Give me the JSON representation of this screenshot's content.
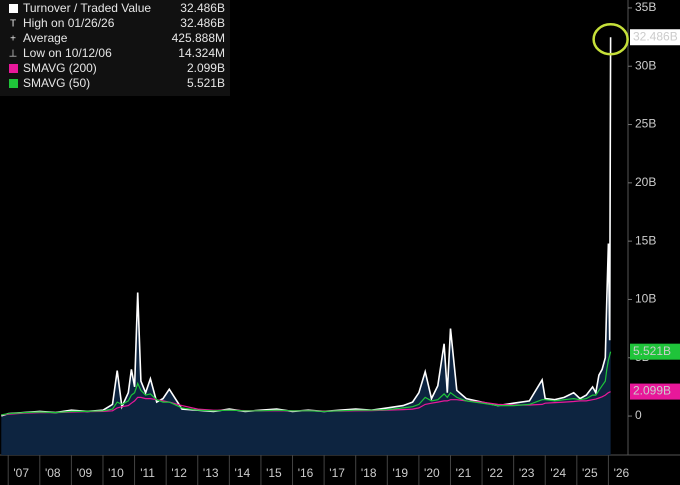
{
  "chart_data": {
    "type": "line",
    "x": [
      2006.78,
      2007.0,
      2007.5,
      2008.0,
      2008.5,
      2009.0,
      2009.5,
      2010.0,
      2010.3,
      2010.45,
      2010.6,
      2010.8,
      2010.9,
      2011.0,
      2011.1,
      2011.2,
      2011.35,
      2011.5,
      2011.7,
      2011.9,
      2012.1,
      2012.5,
      2013.0,
      2013.5,
      2014.0,
      2014.5,
      2015.0,
      2015.5,
      2016.0,
      2016.5,
      2017.0,
      2017.5,
      2018.0,
      2018.5,
      2019.0,
      2019.5,
      2019.8,
      2020.0,
      2020.2,
      2020.4,
      2020.6,
      2020.8,
      2020.9,
      2021.0,
      2021.2,
      2021.5,
      2022.0,
      2022.5,
      2023.0,
      2023.5,
      2023.9,
      2024.0,
      2024.3,
      2024.6,
      2024.9,
      2025.1,
      2025.3,
      2025.5,
      2025.6,
      2025.7,
      2025.8,
      2025.9,
      2025.95,
      2026.0,
      2026.04,
      2026.07
    ],
    "series": [
      {
        "name": "Turnover / Traded Value",
        "color": "#ffffff",
        "area_color": "#0d2440",
        "last_label": "32.486B",
        "values": [
          0.014,
          0.2,
          0.3,
          0.4,
          0.3,
          0.5,
          0.4,
          0.5,
          1.0,
          3.9,
          0.8,
          2.0,
          4.0,
          2.5,
          10.6,
          3.0,
          2.0,
          3.2,
          1.2,
          1.5,
          2.3,
          0.6,
          0.5,
          0.4,
          0.6,
          0.4,
          0.5,
          0.6,
          0.4,
          0.5,
          0.4,
          0.5,
          0.6,
          0.5,
          0.7,
          0.9,
          1.2,
          2.0,
          3.8,
          1.5,
          2.6,
          6.2,
          2.0,
          7.5,
          2.2,
          1.5,
          1.2,
          0.9,
          1.1,
          1.3,
          3.1,
          1.5,
          1.4,
          1.6,
          2.0,
          1.5,
          1.8,
          2.5,
          2.0,
          3.5,
          4.0,
          5.0,
          10.0,
          14.8,
          6.5,
          32.486
        ]
      },
      {
        "name": "SMAVG (200)",
        "color": "#e8189a",
        "last_label": "2.099B",
        "values": [
          0.1,
          0.15,
          0.25,
          0.3,
          0.3,
          0.35,
          0.38,
          0.4,
          0.45,
          0.7,
          0.8,
          0.9,
          1.1,
          1.3,
          1.6,
          1.6,
          1.5,
          1.5,
          1.4,
          1.3,
          1.2,
          0.9,
          0.6,
          0.5,
          0.5,
          0.47,
          0.45,
          0.47,
          0.45,
          0.45,
          0.43,
          0.43,
          0.45,
          0.47,
          0.5,
          0.55,
          0.6,
          0.7,
          1.0,
          1.1,
          1.2,
          1.3,
          1.3,
          1.4,
          1.4,
          1.3,
          1.2,
          1.0,
          0.95,
          0.95,
          1.0,
          1.1,
          1.15,
          1.2,
          1.25,
          1.3,
          1.3,
          1.4,
          1.45,
          1.55,
          1.65,
          1.8,
          1.9,
          2.0,
          2.05,
          2.099
        ]
      },
      {
        "name": "SMAVG (50)",
        "color": "#1fc43a",
        "last_label": "5.521B",
        "values": [
          0.1,
          0.2,
          0.3,
          0.35,
          0.3,
          0.4,
          0.4,
          0.45,
          0.6,
          1.2,
          1.0,
          1.3,
          1.8,
          2.0,
          2.8,
          2.2,
          1.8,
          1.9,
          1.4,
          1.2,
          1.2,
          0.7,
          0.5,
          0.45,
          0.5,
          0.45,
          0.45,
          0.5,
          0.45,
          0.45,
          0.4,
          0.45,
          0.5,
          0.5,
          0.55,
          0.7,
          0.8,
          1.0,
          1.6,
          1.3,
          1.4,
          1.9,
          1.6,
          2.0,
          1.6,
          1.3,
          1.1,
          0.9,
          0.9,
          1.0,
          1.4,
          1.4,
          1.3,
          1.4,
          1.5,
          1.4,
          1.5,
          1.8,
          1.8,
          2.2,
          2.6,
          3.0,
          4.0,
          4.8,
          5.2,
          5.521
        ]
      }
    ],
    "stats": [
      {
        "label": "High on 01/26/26",
        "value": 32.486,
        "value_label": "32.486B"
      },
      {
        "label": "Average",
        "value": 0.425888,
        "value_label": "425.888M"
      },
      {
        "label": "Low on 10/12/06",
        "value": 0.014324,
        "value_label": "14.324M"
      }
    ],
    "xlim": [
      2006.74,
      2026.62
    ],
    "xticks": [
      {
        "value": 2007,
        "label": "'07"
      },
      {
        "value": 2008,
        "label": "'08"
      },
      {
        "value": 2009,
        "label": "'09"
      },
      {
        "value": 2010,
        "label": "'10"
      },
      {
        "value": 2011,
        "label": "'11"
      },
      {
        "value": 2012,
        "label": "'12"
      },
      {
        "value": 2013,
        "label": "'13"
      },
      {
        "value": 2014,
        "label": "'14"
      },
      {
        "value": 2015,
        "label": "'15"
      },
      {
        "value": 2016,
        "label": "'16"
      },
      {
        "value": 2017,
        "label": "'17"
      },
      {
        "value": 2018,
        "label": "'18"
      },
      {
        "value": 2019,
        "label": "'19"
      },
      {
        "value": 2020,
        "label": "'20"
      },
      {
        "value": 2021,
        "label": "'21"
      },
      {
        "value": 2022,
        "label": "'22"
      },
      {
        "value": 2023,
        "label": "'23"
      },
      {
        "value": 2024,
        "label": "'24"
      },
      {
        "value": 2025,
        "label": "'25"
      },
      {
        "value": 2026,
        "label": "'26"
      }
    ],
    "ylim": [
      -3.34,
      35.68
    ],
    "yticks": [
      0,
      {
        "value": 5,
        "label": "5B"
      },
      {
        "value": 10,
        "label": "10B"
      },
      {
        "value": 15,
        "label": "15B"
      },
      {
        "value": 20,
        "label": "20B"
      },
      {
        "value": 25,
        "label": "25B"
      },
      {
        "value": 30,
        "label": "30B"
      },
      {
        "value": 35,
        "label": "35B"
      }
    ],
    "grid": false
  }
}
